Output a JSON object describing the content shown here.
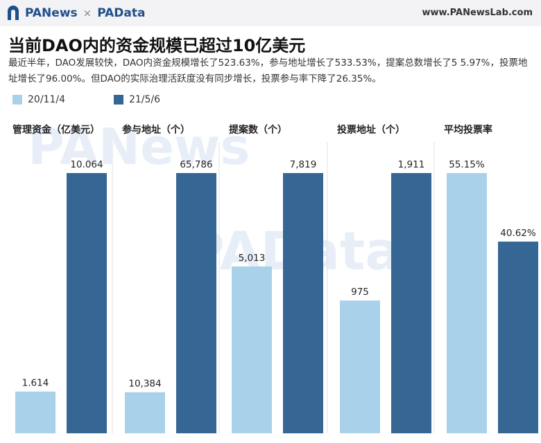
{
  "header": {
    "brand_left": "PANews",
    "brand_sep": "×",
    "brand_right": "PAData",
    "site": "www.PANewsLab.com"
  },
  "title": "当前DAO内的资金规模已超过10亿美元",
  "description": "最近半年，DAO发展较快，DAO内资金规模增长了523.63%，参与地址增长了533.53%，提案总数增长了5 5.97%，投票地址增长了96.00%。但DAO的实际治理活跃度没有同步增长，投票参与率下降了26.35%。",
  "watermarks": [
    "PANews",
    "PAData"
  ],
  "colors": {
    "series1": "#a9d1ea",
    "series2": "#356694",
    "divider": "#e2e2e2"
  },
  "chart_data": {
    "type": "bar",
    "series": [
      {
        "name": "20/11/4",
        "values": [
          1.614,
          10384,
          5013,
          975,
          55.15
        ],
        "labels": [
          "1.614",
          "10,384",
          "5,013",
          "975",
          "55.15%"
        ]
      },
      {
        "name": "21/5/6",
        "values": [
          10.064,
          65786,
          7819,
          1911,
          40.62
        ],
        "labels": [
          "10.064",
          "65,786",
          "7,819",
          "1,911",
          "40.62%"
        ]
      }
    ],
    "panels": [
      "管理资金（亿美元）",
      "参与地址（个）",
      "提案数（个）",
      "投票地址（个）",
      "平均投票率"
    ],
    "grid": false,
    "legend": "top-left"
  }
}
